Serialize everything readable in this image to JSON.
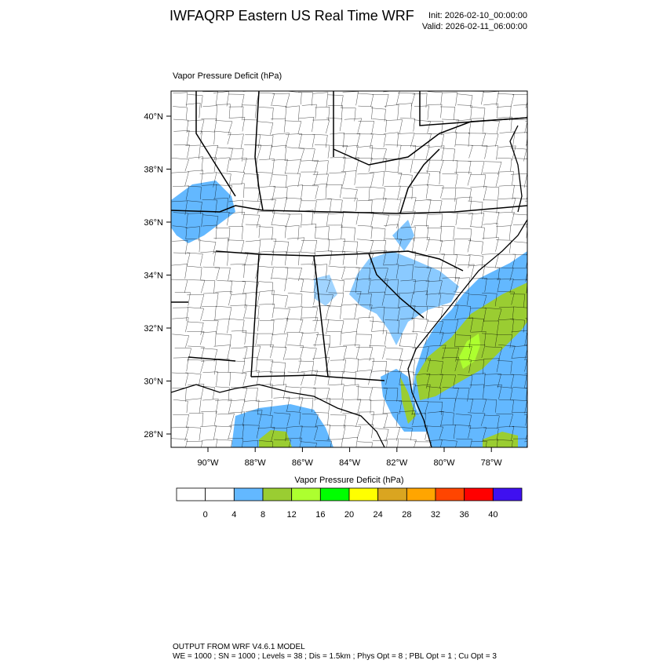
{
  "header": {
    "title": "IWFAQRP Eastern US Real Time WRF",
    "init": "Init: 2026-02-10_00:00:00",
    "valid": "Valid: 2026-02-11_06:00:00"
  },
  "map": {
    "subtitle": "Vapor Pressure Deficit   (hPa)",
    "lat_labels": [
      "40°N",
      "38°N",
      "36°N",
      "34°N",
      "32°N",
      "30°N",
      "28°N"
    ],
    "lon_labels": [
      "90°W",
      "88°W",
      "86°W",
      "84°W",
      "82°W",
      "80°W",
      "78°W"
    ]
  },
  "colorbar": {
    "title": "Vapor Pressure Deficit  (hPa)",
    "colors": [
      "#ffffff",
      "#ffffff",
      "#63b8ff",
      "#9acd32",
      "#adff2f",
      "#00ff00",
      "#ffff00",
      "#daa520",
      "#ffa500",
      "#ff4500",
      "#ff0000",
      "#3f10f0"
    ],
    "labels": [
      "0",
      "4",
      "8",
      "12",
      "16",
      "20",
      "24",
      "28",
      "32",
      "36",
      "40"
    ]
  },
  "footer": {
    "line1": "OUTPUT FROM WRF V4.6.1 MODEL",
    "line2": "WE = 1000 ; SN = 1000 ; Levels = 38 ; Dis = 1.5km ; Phys Opt = 8 ; PBL Opt = 1 ; Cu Opt = 3"
  }
}
